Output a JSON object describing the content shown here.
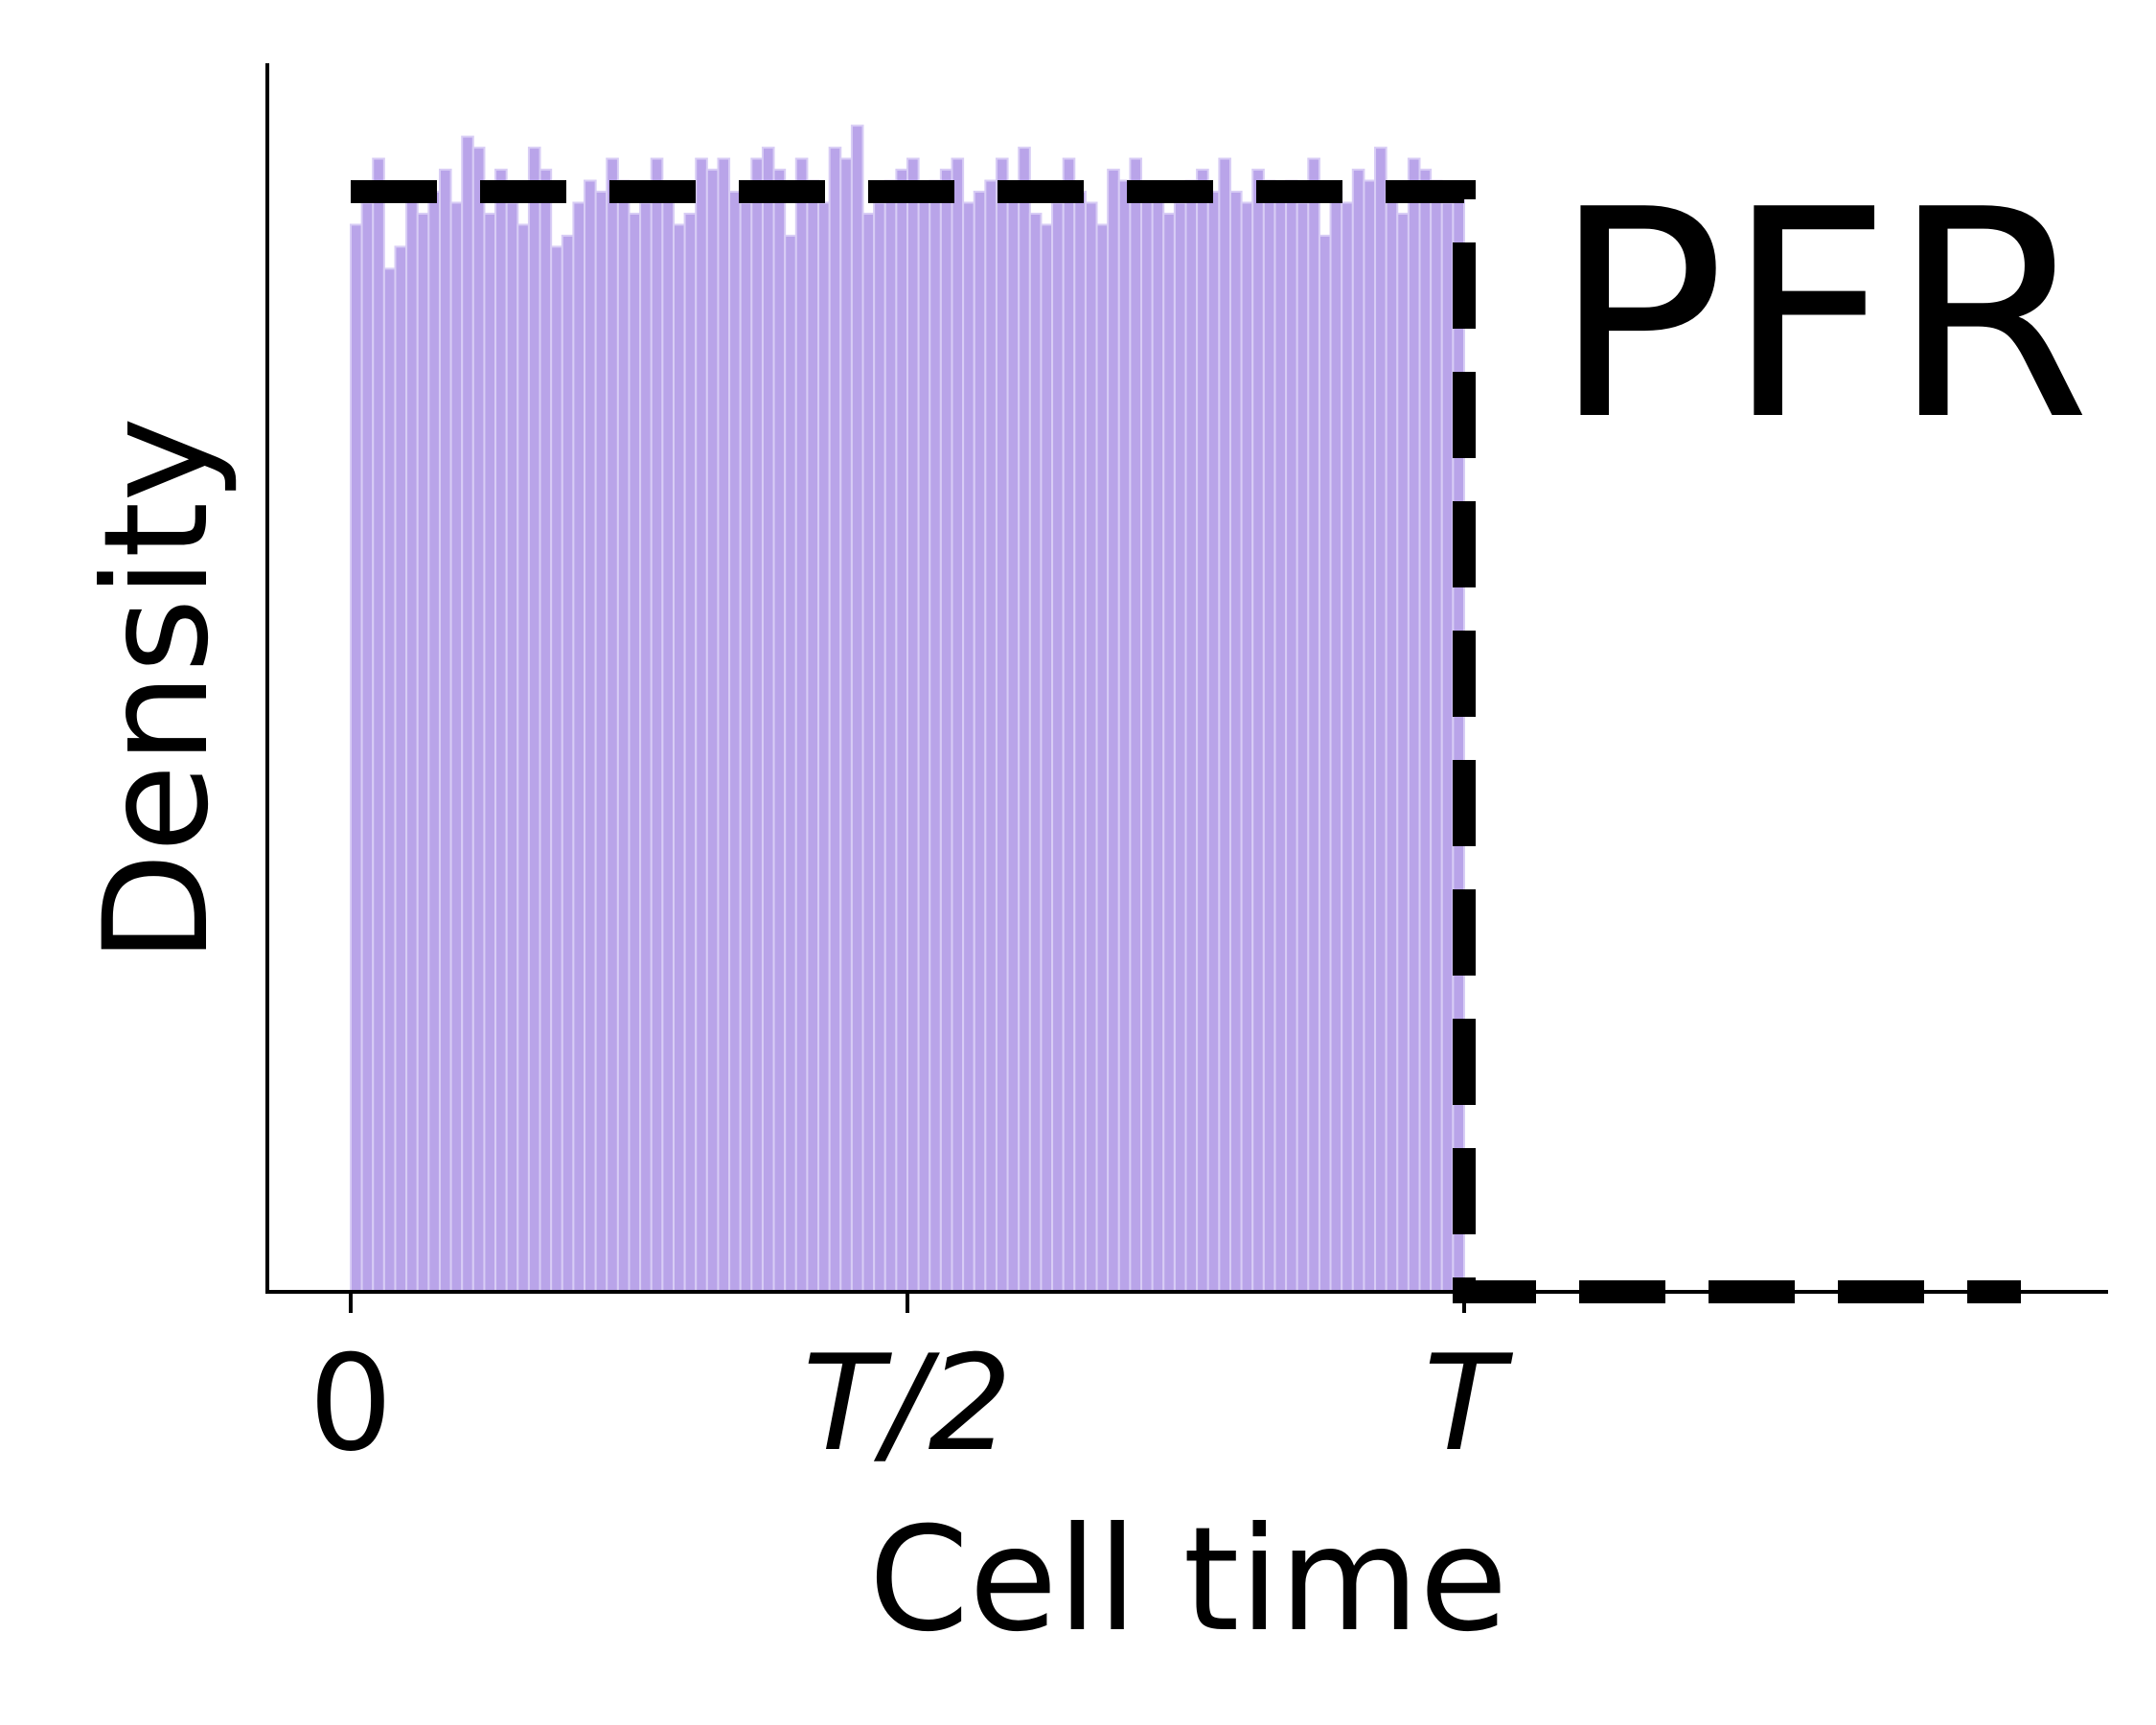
{
  "chart_data": {
    "type": "bar",
    "xlabel": "Cell time",
    "ylabel": "Density",
    "annotation": "PFR",
    "x_range": [
      -0.075,
      1.585
    ],
    "y_range": [
      0,
      1.18
    ],
    "x_ticks": [
      {
        "value": 0,
        "label": "0",
        "italic": false
      },
      {
        "value": 0.5,
        "label": "T/2",
        "italic": true
      },
      {
        "value": 1,
        "label": "T",
        "italic": true
      }
    ],
    "y_ticks_shown": false,
    "grid": false,
    "bar_color": "#b9a4e9",
    "bar_edge_color": "#d8cdf5",
    "reference_color": "#000000",
    "histogram": {
      "bin_width": 0.01,
      "bin_start": 0,
      "values": [
        0.97,
        0.99,
        1.03,
        0.93,
        0.95,
        1.0,
        0.98,
        1.0,
        1.02,
        0.99,
        1.05,
        1.04,
        0.98,
        1.02,
        0.99,
        0.97,
        1.04,
        1.02,
        0.95,
        0.96,
        0.99,
        1.01,
        1.0,
        1.03,
        1.01,
        0.98,
        0.99,
        1.03,
        1.0,
        0.97,
        0.98,
        1.03,
        1.02,
        1.03,
        1.0,
        0.99,
        1.03,
        1.04,
        1.02,
        0.96,
        1.03,
        1.01,
        0.99,
        1.04,
        1.03,
        1.06,
        0.98,
        0.99,
        1.01,
        1.02,
        1.03,
        1.0,
        1.01,
        1.02,
        1.03,
        0.99,
        1.0,
        1.01,
        1.03,
        1.0,
        1.04,
        0.98,
        0.97,
        0.99,
        1.03,
        1.0,
        0.99,
        0.97,
        1.02,
        1.01,
        1.03,
        1.0,
        1.0,
        0.98,
        0.99,
        1.01,
        1.02,
        1.0,
        1.03,
        1.0,
        0.99,
        1.02,
        1.01,
        1.0,
        1.01,
        0.99,
        1.03,
        0.96,
        1.0,
        0.99,
        1.02,
        1.01,
        1.04,
        1.0,
        0.98,
        1.03,
        1.02,
        1.01,
        0.99,
        1.0
      ],
      "note_values_relative_to_reference": true
    },
    "reference_density": {
      "style": "dashed",
      "points": [
        [
          0,
          1.0
        ],
        [
          1,
          1.0
        ],
        [
          1,
          0.0
        ],
        [
          1.5,
          0.0
        ]
      ]
    }
  }
}
